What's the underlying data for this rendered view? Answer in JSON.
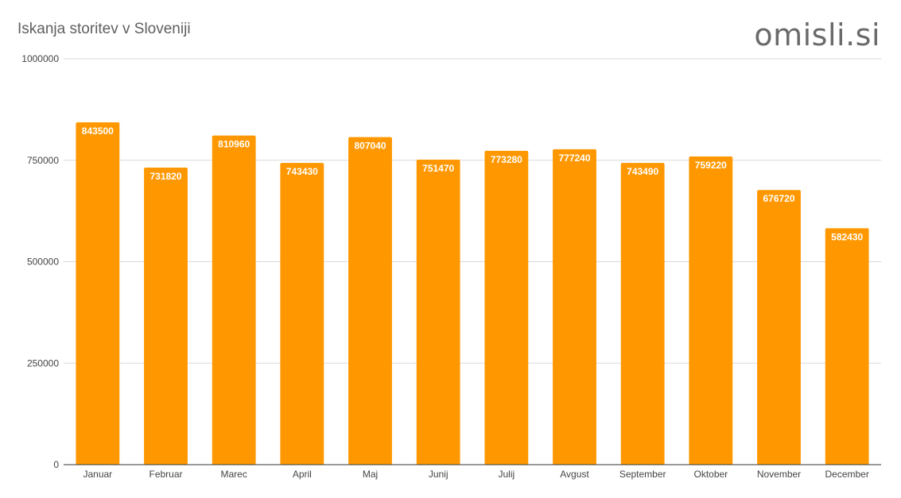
{
  "header": {
    "title": "Iskanja storitev v Sloveniji",
    "brand": "omisli.si"
  },
  "colors": {
    "bar": "#ff9800",
    "grid": "#d9d9d9",
    "axis": "#333333"
  },
  "chart_data": {
    "type": "bar",
    "title": "Iskanja storitev v Sloveniji",
    "xlabel": "",
    "ylabel": "",
    "categories": [
      "Januar",
      "Februar",
      "Marec",
      "April",
      "Maj",
      "Junij",
      "Julij",
      "Avgust",
      "September",
      "Oktober",
      "November",
      "December"
    ],
    "values": [
      843500,
      731820,
      810960,
      743430,
      807040,
      751470,
      773280,
      777240,
      743490,
      759220,
      676720,
      582430
    ],
    "ylim": [
      0,
      1000000
    ],
    "yticks": [
      "0",
      "250000",
      "500000",
      "750000",
      "1000000"
    ],
    "grid": true,
    "legend": "none",
    "data_labels": true
  }
}
